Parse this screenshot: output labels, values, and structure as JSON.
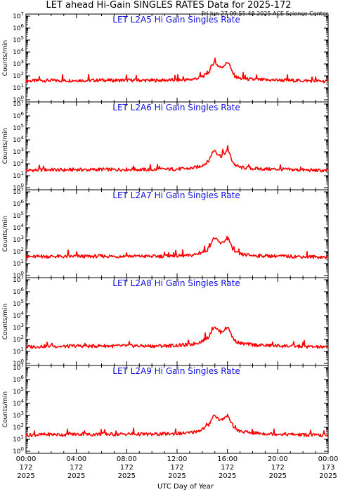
{
  "header": {
    "title": "LET ahead Hi-Gain SINGLES RATES Data for 2025-172",
    "timestamp": "Fri Jun 27 09:55:48 2025 ACE Science Center"
  },
  "colors": {
    "series": "#ff0000",
    "panel_title": "#1010e0",
    "axes": "#000000"
  },
  "chart_data": [
    {
      "type": "line",
      "title": "LET L2A5 Hi Gain Singles Rate",
      "ylabel": "Counts/min",
      "ylim": [
        1,
        10000000
      ],
      "yscale": "log",
      "yticks": [
        "10^0",
        "10^1",
        "10^2",
        "10^3",
        "10^4",
        "10^5",
        "10^6",
        "10^7"
      ],
      "xlim": [
        0,
        24
      ],
      "series": [
        {
          "values": [
            [
              0,
              38
            ],
            [
              1,
              40
            ],
            [
              2,
              42
            ],
            [
              3,
              40
            ],
            [
              4,
              43
            ],
            [
              5,
              41
            ],
            [
              6,
              45
            ],
            [
              7,
              42
            ],
            [
              8,
              44
            ],
            [
              9,
              43
            ],
            [
              10,
              42
            ],
            [
              11,
              44
            ],
            [
              12,
              45
            ],
            [
              13,
              48
            ],
            [
              13.8,
              70
            ],
            [
              14.2,
              110
            ],
            [
              14.5,
              180
            ],
            [
              14.8,
              900
            ],
            [
              15.0,
              1600
            ],
            [
              15.2,
              800
            ],
            [
              15.5,
              480
            ],
            [
              15.8,
              900
            ],
            [
              16.1,
              1500
            ],
            [
              16.3,
              300
            ],
            [
              16.6,
              90
            ],
            [
              17,
              60
            ],
            [
              18,
              50
            ],
            [
              19,
              45
            ],
            [
              20,
              45
            ],
            [
              21,
              42
            ],
            [
              22,
              40
            ],
            [
              23,
              38
            ],
            [
              24,
              35
            ]
          ]
        }
      ]
    },
    {
      "type": "line",
      "title": "LET L2A6 Hi Gain Singles Rate",
      "ylabel": "Counts/min",
      "ylim": [
        1,
        10000000
      ],
      "yscale": "log",
      "yticks": [
        "10^0",
        "10^1",
        "10^2",
        "10^3",
        "10^4",
        "10^5",
        "10^6",
        "10^7"
      ],
      "xlim": [
        0,
        24
      ],
      "series": [
        {
          "values": [
            [
              0,
              28
            ],
            [
              1,
              30
            ],
            [
              2,
              32
            ],
            [
              3,
              30
            ],
            [
              4,
              33
            ],
            [
              5,
              31
            ],
            [
              6,
              34
            ],
            [
              7,
              32
            ],
            [
              8,
              34
            ],
            [
              9,
              33
            ],
            [
              10,
              32
            ],
            [
              11,
              34
            ],
            [
              12,
              36
            ],
            [
              13,
              40
            ],
            [
              13.8,
              60
            ],
            [
              14.2,
              100
            ],
            [
              14.5,
              160
            ],
            [
              14.8,
              850
            ],
            [
              15.0,
              1500
            ],
            [
              15.2,
              700
            ],
            [
              15.5,
              420
            ],
            [
              15.8,
              800
            ],
            [
              16.1,
              1300
            ],
            [
              16.3,
              250
            ],
            [
              16.6,
              80
            ],
            [
              17,
              50
            ],
            [
              18,
              40
            ],
            [
              19,
              36
            ],
            [
              20,
              35
            ],
            [
              21,
              32
            ],
            [
              22,
              30
            ],
            [
              23,
              28
            ],
            [
              24,
              26
            ]
          ]
        }
      ]
    },
    {
      "type": "line",
      "title": "LET L2A7 Hi Gain Singles Rate",
      "ylabel": "Counts/min",
      "ylim": [
        1,
        10000000
      ],
      "yscale": "log",
      "yticks": [
        "10^0",
        "10^1",
        "10^2",
        "10^3",
        "10^4",
        "10^5",
        "10^6",
        "10^7"
      ],
      "xlim": [
        0,
        24
      ],
      "series": [
        {
          "values": [
            [
              0,
              36
            ],
            [
              1,
              38
            ],
            [
              2,
              40
            ],
            [
              3,
              38
            ],
            [
              4,
              41
            ],
            [
              5,
              39
            ],
            [
              6,
              42
            ],
            [
              7,
              40
            ],
            [
              8,
              42
            ],
            [
              9,
              41
            ],
            [
              10,
              40
            ],
            [
              11,
              42
            ],
            [
              12,
              44
            ],
            [
              13,
              46
            ],
            [
              13.8,
              70
            ],
            [
              14.2,
              110
            ],
            [
              14.5,
              170
            ],
            [
              14.8,
              900
            ],
            [
              15.0,
              1500
            ],
            [
              15.2,
              750
            ],
            [
              15.5,
              450
            ],
            [
              15.8,
              850
            ],
            [
              16.1,
              1200
            ],
            [
              16.3,
              280
            ],
            [
              16.6,
              90
            ],
            [
              17,
              60
            ],
            [
              18,
              48
            ],
            [
              19,
              44
            ],
            [
              20,
              42
            ],
            [
              21,
              40
            ],
            [
              22,
              38
            ],
            [
              23,
              36
            ],
            [
              24,
              34
            ]
          ]
        }
      ]
    },
    {
      "type": "line",
      "title": "LET L2A8 Hi Gain Singles Rate",
      "ylabel": "Counts/min",
      "ylim": [
        1,
        10000000
      ],
      "yscale": "log",
      "yticks": [
        "10^0",
        "10^1",
        "10^2",
        "10^3",
        "10^4",
        "10^5",
        "10^6",
        "10^7"
      ],
      "xlim": [
        0,
        24
      ],
      "series": [
        {
          "values": [
            [
              0,
              24
            ],
            [
              1,
              26
            ],
            [
              2,
              28
            ],
            [
              3,
              26
            ],
            [
              4,
              29
            ],
            [
              5,
              27
            ],
            [
              6,
              30
            ],
            [
              7,
              28
            ],
            [
              8,
              30
            ],
            [
              9,
              29
            ],
            [
              10,
              28
            ],
            [
              11,
              30
            ],
            [
              12,
              32
            ],
            [
              13,
              36
            ],
            [
              13.8,
              60
            ],
            [
              14.2,
              100
            ],
            [
              14.5,
              160
            ],
            [
              14.8,
              800
            ],
            [
              15.0,
              1300
            ],
            [
              15.2,
              650
            ],
            [
              15.5,
              400
            ],
            [
              15.8,
              750
            ],
            [
              16.1,
              1100
            ],
            [
              16.3,
              230
            ],
            [
              16.6,
              80
            ],
            [
              17,
              48
            ],
            [
              18,
              36
            ],
            [
              19,
              32
            ],
            [
              20,
              30
            ],
            [
              21,
              28
            ],
            [
              22,
              26
            ],
            [
              23,
              24
            ],
            [
              24,
              22
            ]
          ]
        }
      ]
    },
    {
      "type": "line",
      "title": "LET L2A9 Hi Gain Singles Rate",
      "ylabel": "Counts/min",
      "ylim": [
        1,
        10000000
      ],
      "yscale": "log",
      "yticks": [
        "10^0",
        "10^1",
        "10^2",
        "10^3",
        "10^4",
        "10^5",
        "10^6",
        "10^7"
      ],
      "xlim": [
        0,
        24
      ],
      "series": [
        {
          "values": [
            [
              0,
              22
            ],
            [
              1,
              24
            ],
            [
              2,
              26
            ],
            [
              3,
              24
            ],
            [
              4,
              27
            ],
            [
              5,
              25
            ],
            [
              6,
              28
            ],
            [
              7,
              26
            ],
            [
              8,
              28
            ],
            [
              9,
              27
            ],
            [
              10,
              26
            ],
            [
              11,
              28
            ],
            [
              12,
              30
            ],
            [
              13,
              34
            ],
            [
              13.8,
              55
            ],
            [
              14.2,
              90
            ],
            [
              14.5,
              150
            ],
            [
              14.8,
              700
            ],
            [
              15.0,
              1100
            ],
            [
              15.2,
              600
            ],
            [
              15.5,
              380
            ],
            [
              15.8,
              700
            ],
            [
              16.1,
              1000
            ],
            [
              16.3,
              220
            ],
            [
              16.6,
              75
            ],
            [
              17,
              45
            ],
            [
              18,
              34
            ],
            [
              19,
              30
            ],
            [
              20,
              28
            ],
            [
              21,
              26
            ],
            [
              22,
              24
            ],
            [
              23,
              22
            ],
            [
              24,
              20
            ]
          ]
        }
      ]
    }
  ],
  "x_axis": {
    "label": "UTC Day of Year",
    "ticks": [
      {
        "value": 0,
        "time": "00:00",
        "day": "172",
        "year": "2025"
      },
      {
        "value": 4,
        "time": "04:00",
        "day": "172",
        "year": "2025"
      },
      {
        "value": 8,
        "time": "08:00",
        "day": "172",
        "year": "2025"
      },
      {
        "value": 12,
        "time": "12:00",
        "day": "172",
        "year": "2025"
      },
      {
        "value": 16,
        "time": "16:00",
        "day": "172",
        "year": "2025"
      },
      {
        "value": 20,
        "time": "20:00",
        "day": "172",
        "year": "2025"
      },
      {
        "value": 24,
        "time": "00:00",
        "day": "173",
        "year": "2025"
      }
    ]
  }
}
